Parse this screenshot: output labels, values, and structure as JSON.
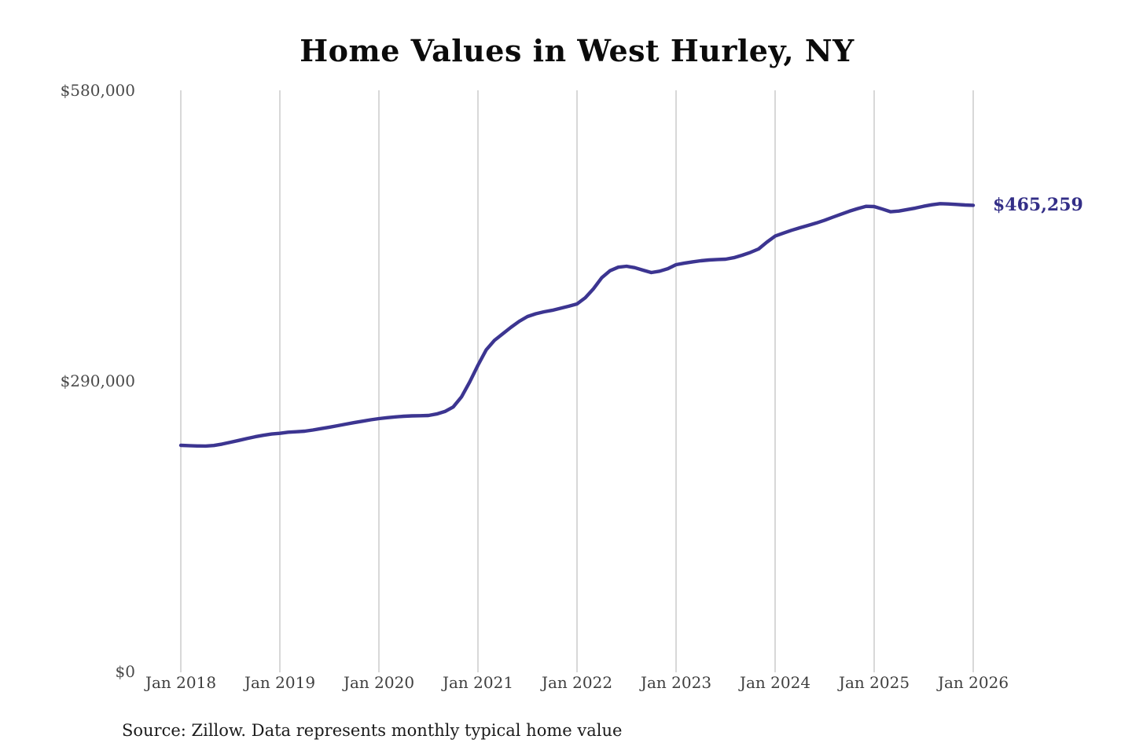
{
  "chart": {
    "title": "Home Values in West Hurley, NY",
    "latest_value_label": "$465,259",
    "source": "Source: Zillow. Data represents monthly typical home value",
    "colors": {
      "line": "#3c3591",
      "latest_label": "#332e87",
      "gridline": "#cccccc",
      "y_tick_text": "#4a4a4a",
      "x_tick_text": "#3f3f3f",
      "title_text": "#0b0b0b",
      "source_text": "#1b1b1b",
      "background": "#ffffff"
    }
  },
  "chart_data": {
    "type": "line",
    "title": "Home Values in West Hurley, NY",
    "series_name": "Monthly typical home value",
    "xlabel": "",
    "ylabel": "",
    "ylim": [
      0,
      580000
    ],
    "grid": "vertical-only",
    "legend": "none",
    "y_ticks": [
      {
        "value": 0,
        "label": "$0"
      },
      {
        "value": 290000,
        "label": "$290,000"
      },
      {
        "value": 580000,
        "label": "$580,000"
      }
    ],
    "x_ticks": [
      "Jan 2018",
      "Jan 2019",
      "Jan 2020",
      "Jan 2021",
      "Jan 2022",
      "Jan 2023",
      "Jan 2024",
      "Jan 2025",
      "Jan 2026"
    ],
    "annotation": {
      "text": "$465,259",
      "x": "2026-01",
      "value": 465259
    },
    "x": [
      "2018-01",
      "2018-02",
      "2018-03",
      "2018-04",
      "2018-05",
      "2018-06",
      "2018-07",
      "2018-08",
      "2018-09",
      "2018-10",
      "2018-11",
      "2018-12",
      "2019-01",
      "2019-02",
      "2019-03",
      "2019-04",
      "2019-05",
      "2019-06",
      "2019-07",
      "2019-08",
      "2019-09",
      "2019-10",
      "2019-11",
      "2019-12",
      "2020-01",
      "2020-02",
      "2020-03",
      "2020-04",
      "2020-05",
      "2020-06",
      "2020-07",
      "2020-08",
      "2020-09",
      "2020-10",
      "2020-11",
      "2020-12",
      "2021-01",
      "2021-02",
      "2021-03",
      "2021-04",
      "2021-05",
      "2021-06",
      "2021-07",
      "2021-08",
      "2021-09",
      "2021-10",
      "2021-11",
      "2021-12",
      "2022-01",
      "2022-02",
      "2022-03",
      "2022-04",
      "2022-05",
      "2022-06",
      "2022-07",
      "2022-08",
      "2022-09",
      "2022-10",
      "2022-11",
      "2022-12",
      "2023-01",
      "2023-02",
      "2023-03",
      "2023-04",
      "2023-05",
      "2023-06",
      "2023-07",
      "2023-08",
      "2023-09",
      "2023-10",
      "2023-11",
      "2023-12",
      "2024-01",
      "2024-02",
      "2024-03",
      "2024-04",
      "2024-05",
      "2024-06",
      "2024-07",
      "2024-08",
      "2024-09",
      "2024-10",
      "2024-11",
      "2024-12",
      "2025-01",
      "2025-02",
      "2025-03",
      "2025-04",
      "2025-05",
      "2025-06",
      "2025-07",
      "2025-08",
      "2025-09",
      "2025-10",
      "2025-11",
      "2025-12",
      "2026-01"
    ],
    "values": [
      225700,
      225400,
      225100,
      225000,
      225600,
      227000,
      228800,
      230600,
      232500,
      234300,
      235800,
      237000,
      237700,
      238800,
      239300,
      239800,
      241000,
      242400,
      243800,
      245300,
      246900,
      248400,
      249800,
      251200,
      252400,
      253300,
      254100,
      254700,
      255100,
      255300,
      255500,
      257000,
      259500,
      264000,
      274000,
      289000,
      305700,
      321000,
      330500,
      337000,
      343500,
      349500,
      354300,
      357000,
      359000,
      360500,
      362500,
      364500,
      366800,
      373000,
      382000,
      393000,
      400000,
      403500,
      404400,
      403000,
      400500,
      398200,
      399500,
      402000,
      406000,
      407500,
      408800,
      409900,
      410700,
      411200,
      411500,
      413000,
      415400,
      418200,
      421700,
      428500,
      434500,
      437500,
      440300,
      442800,
      445200,
      447600,
      450400,
      453400,
      456400,
      459400,
      462000,
      464200,
      464000,
      461500,
      458800,
      459500,
      461000,
      462500,
      464300,
      465800,
      466900,
      466600,
      466100,
      465600,
      465259
    ]
  }
}
